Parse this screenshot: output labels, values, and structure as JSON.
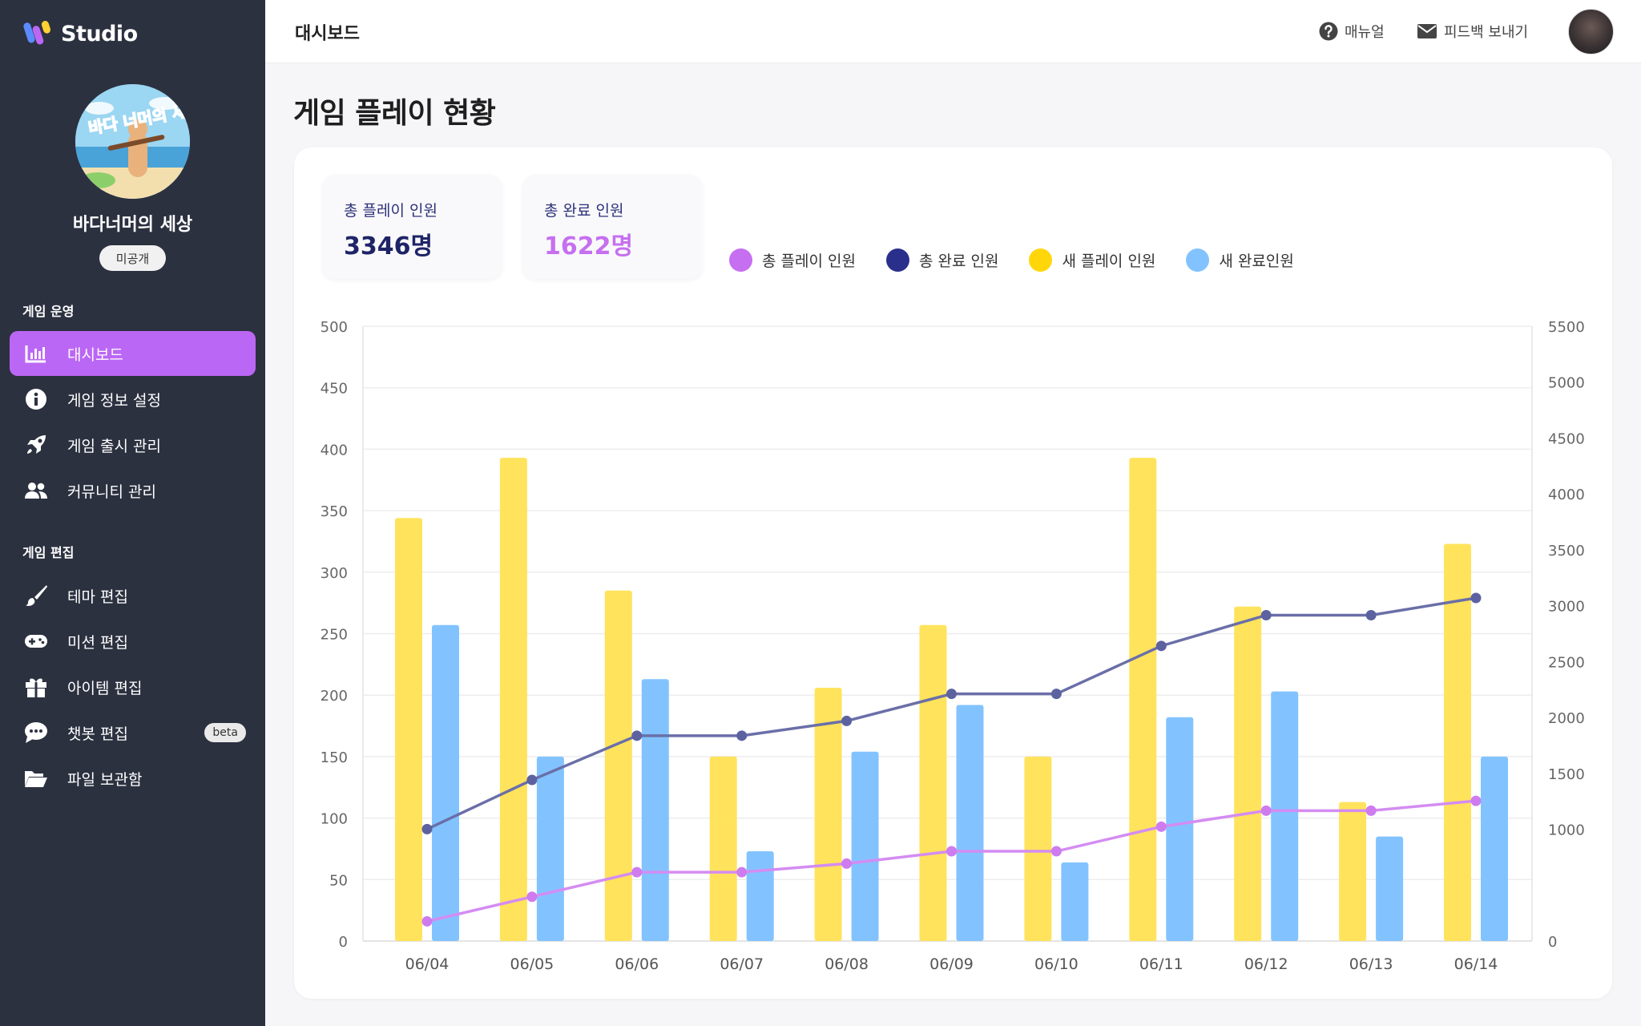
{
  "brand": {
    "name": "Studio"
  },
  "game": {
    "title": "바다너머의 세상",
    "status": "미공개",
    "thumb_text": "바다 너머의 세상"
  },
  "sidebar": {
    "sections": [
      {
        "label": "게임 운영",
        "items": [
          {
            "label": "대시보드",
            "icon": "bar-chart-icon",
            "active": true
          },
          {
            "label": "게임 정보 설정",
            "icon": "info-icon"
          },
          {
            "label": "게임 출시 관리",
            "icon": "rocket-icon"
          },
          {
            "label": "커뮤니티 관리",
            "icon": "users-icon"
          }
        ]
      },
      {
        "label": "게임 편집",
        "items": [
          {
            "label": "테마 편집",
            "icon": "brush-icon"
          },
          {
            "label": "미션 편집",
            "icon": "gamepad-icon"
          },
          {
            "label": "아이템 편집",
            "icon": "gift-icon"
          },
          {
            "label": "챗봇 편집",
            "icon": "chat-icon",
            "badge": "beta"
          },
          {
            "label": "파일 보관함",
            "icon": "folder-open-icon"
          }
        ]
      }
    ]
  },
  "topbar": {
    "title": "대시보드",
    "manual": "매뉴얼",
    "feedback": "피드백 보내기"
  },
  "page": {
    "title": "게임 플레이 현황"
  },
  "stats": {
    "total_play": {
      "label": "총 플레이 인원",
      "value": "3346명",
      "color": "#1e2466"
    },
    "total_complete": {
      "label": "총 완료 인원",
      "value": "1622명",
      "color": "#c66ff0"
    }
  },
  "colors": {
    "accent": "#bb67f5",
    "sidebar_bg": "#2c3140"
  },
  "chart_data": {
    "type": "bar",
    "categories": [
      "06/04",
      "06/05",
      "06/06",
      "06/07",
      "06/08",
      "06/09",
      "06/10",
      "06/11",
      "06/12",
      "06/13",
      "06/14"
    ],
    "y_left": {
      "min": 0,
      "max": 500,
      "ticks": [
        0,
        50,
        100,
        150,
        200,
        250,
        300,
        350,
        400,
        450,
        500
      ]
    },
    "y_right": {
      "min": 0,
      "max": 5500,
      "ticks": [
        0,
        1000,
        1500,
        2000,
        2500,
        3000,
        3500,
        4000,
        4500,
        5000,
        5500
      ]
    },
    "grid": true,
    "legend_position": "top",
    "series": [
      {
        "name": "총 플레이 인원",
        "type": "line",
        "axis": "left",
        "color": "#d48cf2",
        "marker_color": "#cf7bf0",
        "legend_color": "#c66ff0",
        "values": [
          16,
          36,
          56,
          56,
          63,
          73,
          73,
          93,
          106,
          106,
          114
        ]
      },
      {
        "name": "총 완료 인원",
        "type": "line",
        "axis": "left",
        "color": "#6a6fa8",
        "marker_color": "#5c62a0",
        "legend_color": "#2b2f8c",
        "values": [
          91,
          131,
          167,
          167,
          179,
          201,
          201,
          240,
          265,
          265,
          279
        ]
      },
      {
        "name": "새 플레이 인원",
        "type": "bar",
        "axis": "left",
        "color": "#ffe35c",
        "legend_color": "#ffd60a",
        "values": [
          344,
          393,
          285,
          150,
          206,
          257,
          150,
          393,
          272,
          113,
          323
        ]
      },
      {
        "name": "새 완료인원",
        "type": "bar",
        "axis": "left",
        "color": "#82c3ff",
        "legend_color": "#82c3ff",
        "values": [
          257,
          150,
          213,
          73,
          154,
          192,
          64,
          182,
          203,
          85,
          150
        ]
      }
    ]
  }
}
